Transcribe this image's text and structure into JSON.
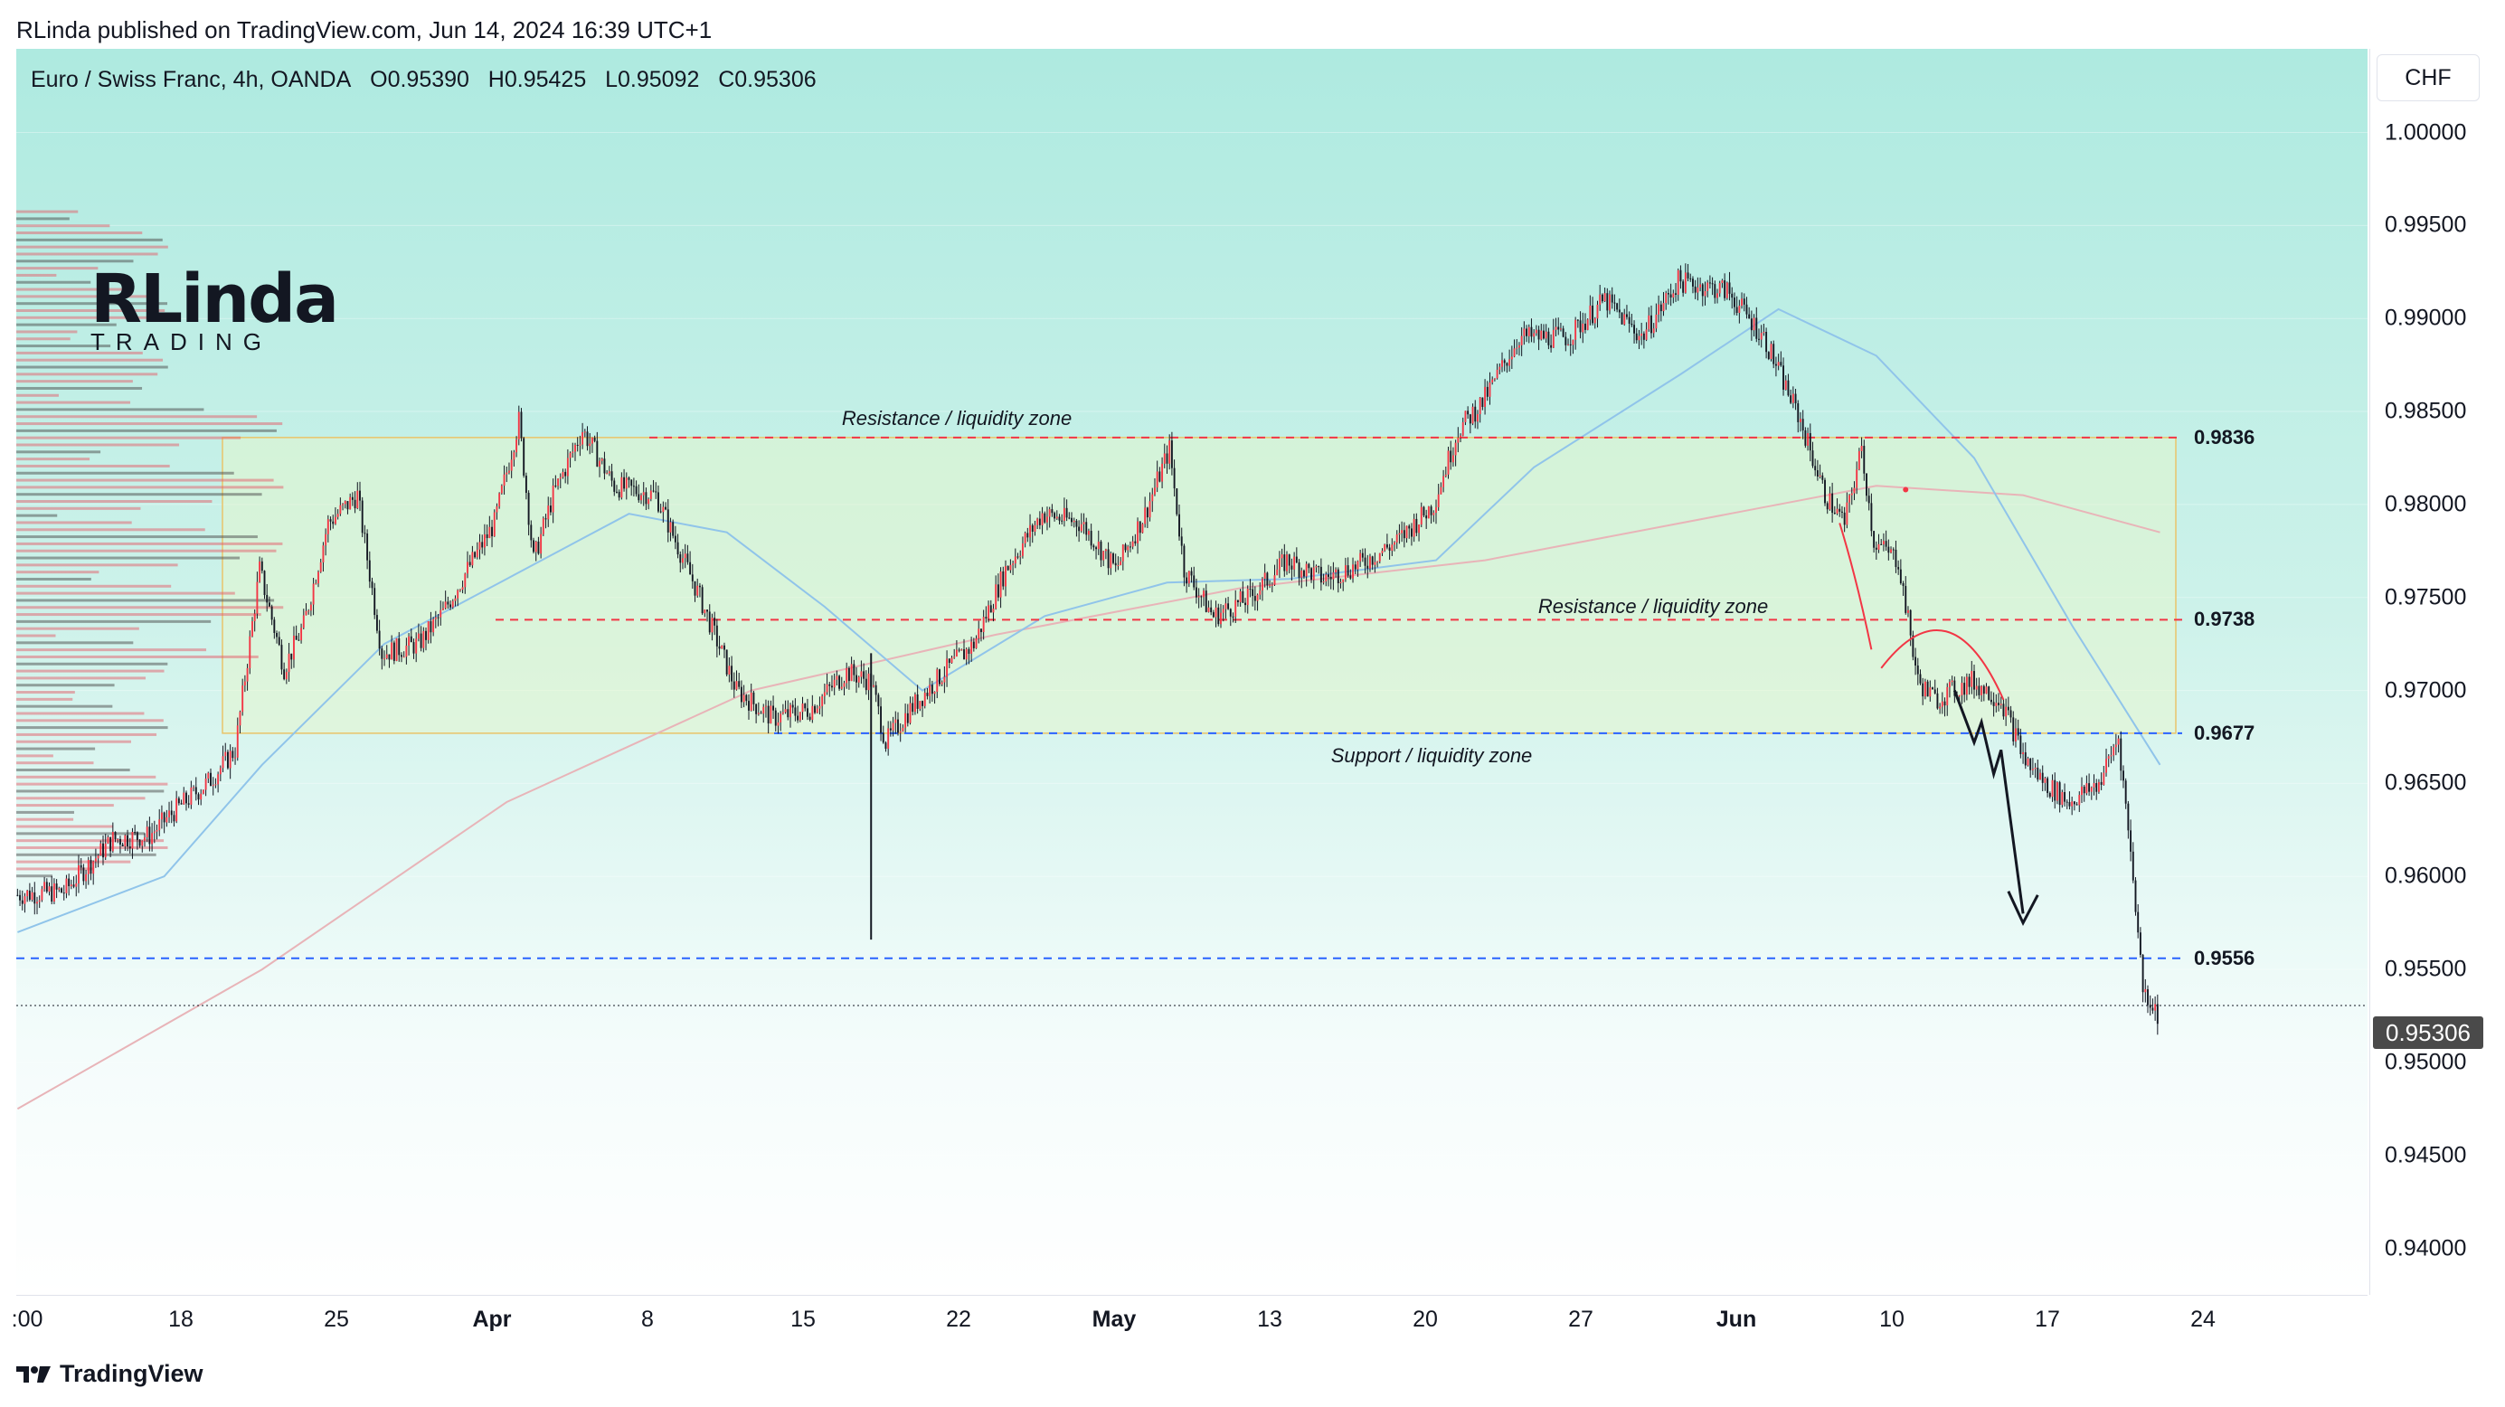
{
  "header": {
    "published": "RLinda published on TradingView.com, Jun 14, 2024 16:39 UTC+1"
  },
  "symbol": {
    "name": "Euro / Swiss Franc, 4h, OANDA",
    "open": "O0.95390",
    "high": "H0.95425",
    "low": "L0.95092",
    "close": "C0.95306"
  },
  "logo": {
    "top": "RLinda",
    "bottom": "TRADING"
  },
  "currency": "CHF",
  "last_price": "0.95306",
  "footer": {
    "brand": "TradingView"
  },
  "colors": {
    "up": "#f23645",
    "down": "#131722",
    "ma_fast": "#90c4ea",
    "ma_slow": "#e8b4b8",
    "zone_border": "#e9c46a",
    "res_line": "#f23645",
    "sup_line": "#2962ff"
  },
  "chart_data": {
    "type": "candlestick",
    "title": "Euro / Swiss Franc, 4h, OANDA",
    "ylim": [
      0.9375,
      1.0045
    ],
    "y_ticks": [
      "1.00000",
      "0.99500",
      "0.99000",
      "0.98500",
      "0.98000",
      "0.97500",
      "0.97000",
      "0.96500",
      "0.96000",
      "0.95500",
      "0.95000",
      "0.94500",
      "0.94000"
    ],
    "x_ticks": [
      {
        "label": ":00",
        "bold": false
      },
      {
        "label": "18",
        "bold": false
      },
      {
        "label": "25",
        "bold": false
      },
      {
        "label": "Apr",
        "bold": true
      },
      {
        "label": "8",
        "bold": false
      },
      {
        "label": "15",
        "bold": false
      },
      {
        "label": "22",
        "bold": false
      },
      {
        "label": "May",
        "bold": true
      },
      {
        "label": "13",
        "bold": false
      },
      {
        "label": "20",
        "bold": false
      },
      {
        "label": "27",
        "bold": false
      },
      {
        "label": "Jun",
        "bold": true
      },
      {
        "label": "10",
        "bold": false
      },
      {
        "label": "17",
        "bold": false
      },
      {
        "label": "24",
        "bold": false
      }
    ],
    "levels": [
      {
        "label": "0.9836",
        "value": 0.9836,
        "kind": "resistance"
      },
      {
        "label": "0.9738",
        "value": 0.9738,
        "kind": "resistance"
      },
      {
        "label": "0.9677",
        "value": 0.9677,
        "kind": "support"
      },
      {
        "label": "0.9556",
        "value": 0.9556,
        "kind": "support"
      }
    ],
    "annotations": [
      {
        "text": "Resistance / liquidity zone",
        "value": 0.9846
      },
      {
        "text": "Resistance / liquidity zone",
        "value": 0.9745
      },
      {
        "text": "Support / liquidity zone",
        "value": 0.9665
      }
    ],
    "price_path": [
      [
        0,
        0.959
      ],
      [
        20,
        0.9592
      ],
      [
        40,
        0.962
      ],
      [
        55,
        0.9622
      ],
      [
        65,
        0.9635
      ],
      [
        80,
        0.9652
      ],
      [
        90,
        0.9668
      ],
      [
        100,
        0.9765
      ],
      [
        110,
        0.9712
      ],
      [
        118,
        0.9735
      ],
      [
        128,
        0.979
      ],
      [
        140,
        0.9805
      ],
      [
        150,
        0.972
      ],
      [
        165,
        0.9725
      ],
      [
        175,
        0.9742
      ],
      [
        185,
        0.9765
      ],
      [
        196,
        0.979
      ],
      [
        206,
        0.9845
      ],
      [
        212,
        0.977
      ],
      [
        220,
        0.9805
      ],
      [
        232,
        0.984
      ],
      [
        245,
        0.981
      ],
      [
        262,
        0.9805
      ],
      [
        280,
        0.975
      ],
      [
        295,
        0.97
      ],
      [
        310,
        0.9685
      ],
      [
        325,
        0.969
      ],
      [
        340,
        0.971
      ],
      [
        350,
        0.9705
      ],
      [
        356,
        0.9672
      ],
      [
        366,
        0.969
      ],
      [
        380,
        0.971
      ],
      [
        392,
        0.9725
      ],
      [
        405,
        0.9765
      ],
      [
        420,
        0.9795
      ],
      [
        436,
        0.979
      ],
      [
        450,
        0.9765
      ],
      [
        462,
        0.9795
      ],
      [
        472,
        0.983
      ],
      [
        478,
        0.9765
      ],
      [
        490,
        0.974
      ],
      [
        505,
        0.975
      ],
      [
        520,
        0.977
      ],
      [
        535,
        0.976
      ],
      [
        550,
        0.9768
      ],
      [
        565,
        0.978
      ],
      [
        580,
        0.98
      ],
      [
        590,
        0.984
      ],
      [
        600,
        0.9855
      ],
      [
        615,
        0.989
      ],
      [
        635,
        0.989
      ],
      [
        650,
        0.991
      ],
      [
        665,
        0.989
      ],
      [
        680,
        0.992
      ],
      [
        700,
        0.9915
      ],
      [
        715,
        0.989
      ],
      [
        730,
        0.9845
      ],
      [
        740,
        0.9805
      ],
      [
        748,
        0.979
      ],
      [
        755,
        0.983
      ],
      [
        760,
        0.978
      ],
      [
        770,
        0.977
      ],
      [
        778,
        0.9705
      ],
      [
        785,
        0.9695
      ],
      [
        800,
        0.9705
      ],
      [
        812,
        0.9695
      ],
      [
        822,
        0.9662
      ],
      [
        830,
        0.965
      ],
      [
        840,
        0.964
      ],
      [
        852,
        0.965
      ],
      [
        860,
        0.9675
      ],
      [
        866,
        0.96
      ],
      [
        870,
        0.954
      ],
      [
        876,
        0.9526
      ]
    ],
    "candle_count": 880,
    "ma_fast": [
      [
        0,
        0.957
      ],
      [
        60,
        0.96
      ],
      [
        100,
        0.966
      ],
      [
        150,
        0.9725
      ],
      [
        200,
        0.976
      ],
      [
        250,
        0.9795
      ],
      [
        290,
        0.9785
      ],
      [
        330,
        0.9745
      ],
      [
        370,
        0.97
      ],
      [
        420,
        0.974
      ],
      [
        470,
        0.9758
      ],
      [
        520,
        0.976
      ],
      [
        580,
        0.977
      ],
      [
        620,
        0.982
      ],
      [
        680,
        0.987
      ],
      [
        720,
        0.9905
      ],
      [
        760,
        0.988
      ],
      [
        800,
        0.9825
      ],
      [
        840,
        0.9735
      ],
      [
        876,
        0.966
      ]
    ],
    "ma_slow": [
      [
        0,
        0.9475
      ],
      [
        100,
        0.955
      ],
      [
        200,
        0.964
      ],
      [
        300,
        0.97
      ],
      [
        400,
        0.973
      ],
      [
        500,
        0.9755
      ],
      [
        600,
        0.977
      ],
      [
        700,
        0.9795
      ],
      [
        760,
        0.981
      ],
      [
        820,
        0.9805
      ],
      [
        876,
        0.9785
      ]
    ]
  }
}
